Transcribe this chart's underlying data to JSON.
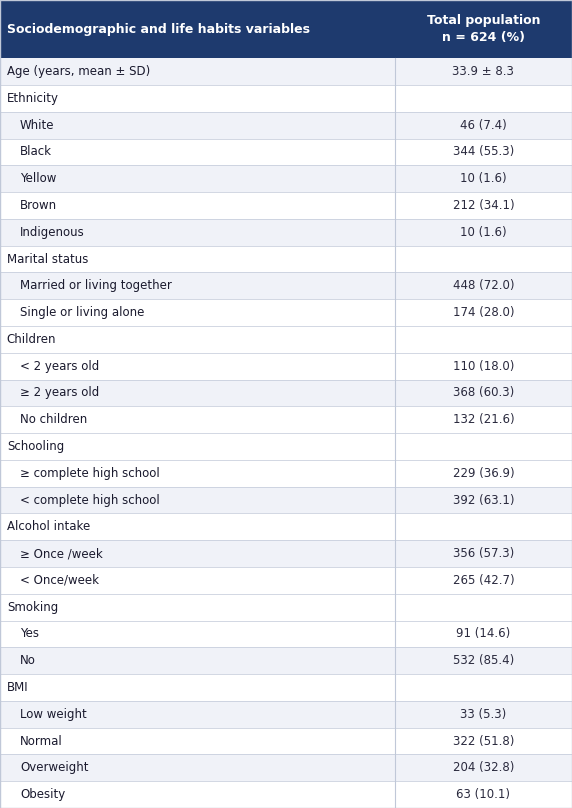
{
  "header_col1": "Sociodemographic and life habits variables",
  "header_col2": "Total population\nn = 624 (%)",
  "header_bg": "#1e3a6e",
  "header_text_color": "#ffffff",
  "body_bg": "#ffffff",
  "section_text_color": "#1a1a2e",
  "value_text_color": "#2a2a3e",
  "line_color": "#c0c8d8",
  "rows": [
    {
      "label": "Age (years, mean ± SD)",
      "value": "33.9 ± 8.3",
      "indent": false,
      "section": false
    },
    {
      "label": "Ethnicity",
      "value": "",
      "indent": false,
      "section": true
    },
    {
      "label": "White",
      "value": "46 (7.4)",
      "indent": true,
      "section": false
    },
    {
      "label": "Black",
      "value": "344 (55.3)",
      "indent": true,
      "section": false
    },
    {
      "label": "Yellow",
      "value": "10 (1.6)",
      "indent": true,
      "section": false
    },
    {
      "label": "Brown",
      "value": "212 (34.1)",
      "indent": true,
      "section": false
    },
    {
      "label": "Indigenous",
      "value": "10 (1.6)",
      "indent": true,
      "section": false
    },
    {
      "label": "Marital status",
      "value": "",
      "indent": false,
      "section": true
    },
    {
      "label": "Married or living together",
      "value": "448 (72.0)",
      "indent": true,
      "section": false
    },
    {
      "label": "Single or living alone",
      "value": "174 (28.0)",
      "indent": true,
      "section": false
    },
    {
      "label": "Children",
      "value": "",
      "indent": false,
      "section": true
    },
    {
      "label": "< 2 years old",
      "value": "110 (18.0)",
      "indent": true,
      "section": false
    },
    {
      "label": "≥ 2 years old",
      "value": "368 (60.3)",
      "indent": true,
      "section": false
    },
    {
      "label": "No children",
      "value": "132 (21.6)",
      "indent": true,
      "section": false
    },
    {
      "label": "Schooling",
      "value": "",
      "indent": false,
      "section": true
    },
    {
      "label": "≥ complete high school",
      "value": "229 (36.9)",
      "indent": true,
      "section": false
    },
    {
      "label": "< complete high school",
      "value": "392 (63.1)",
      "indent": true,
      "section": false
    },
    {
      "label": "Alcohol intake",
      "value": "",
      "indent": false,
      "section": true
    },
    {
      "label": "≥ Once /week",
      "value": "356 (57.3)",
      "indent": true,
      "section": false
    },
    {
      "label": "< Once/week",
      "value": "265 (42.7)",
      "indent": true,
      "section": false
    },
    {
      "label": "Smoking",
      "value": "",
      "indent": false,
      "section": true
    },
    {
      "label": "Yes",
      "value": "91 (14.6)",
      "indent": true,
      "section": false
    },
    {
      "label": "No",
      "value": "532 (85.4)",
      "indent": true,
      "section": false
    },
    {
      "label": "BMI",
      "value": "",
      "indent": false,
      "section": true
    },
    {
      "label": "Low weight",
      "value": "33 (5.3)",
      "indent": true,
      "section": false
    },
    {
      "label": "Normal",
      "value": "322 (51.8)",
      "indent": true,
      "section": false
    },
    {
      "label": "Overweight",
      "value": "204 (32.8)",
      "indent": true,
      "section": false
    },
    {
      "label": "Obesity",
      "value": "63 (10.1)",
      "indent": true,
      "section": false
    }
  ],
  "col_split": 0.69,
  "font_size": 8.5,
  "header_font_size": 9.0
}
